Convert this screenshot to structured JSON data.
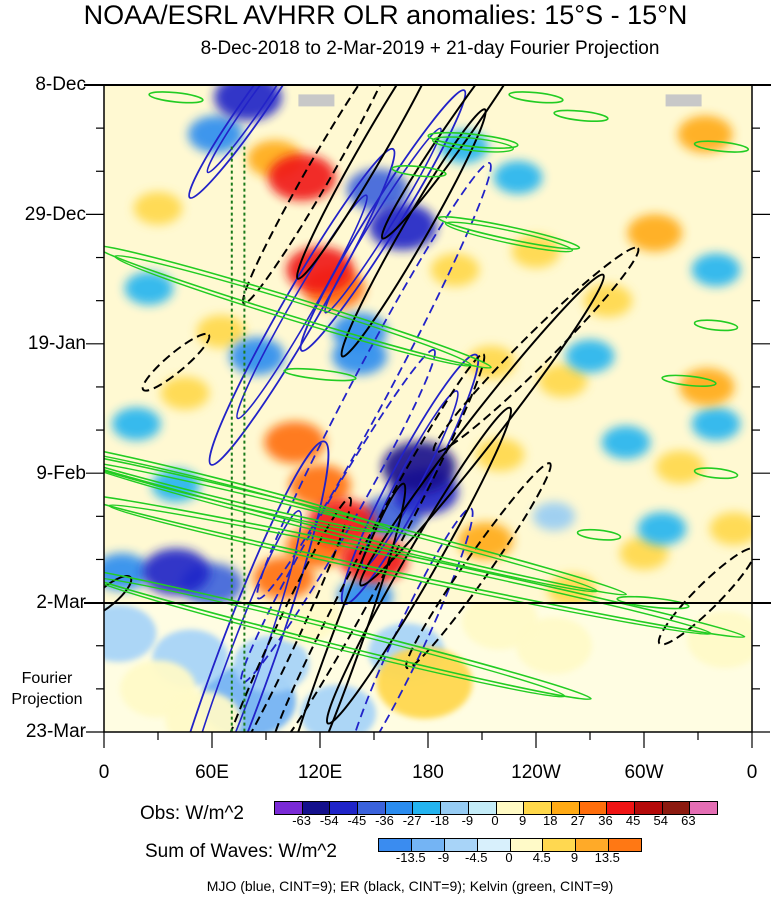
{
  "chart_data": {
    "type": "heatmap",
    "title": "NOAA/ESRL AVHRR OLR anomalies: 15°S - 15°N",
    "subtitle": "8-Dec-2018 to 2-Mar-2019 + 21-day Fourier Projection",
    "y_axis": {
      "labels": [
        "8-Dec",
        "29-Dec",
        "19-Jan",
        "9-Feb",
        "2-Mar",
        "23-Mar"
      ],
      "days": [
        0,
        21,
        42,
        63,
        84,
        105
      ],
      "range": [
        0,
        105
      ],
      "projection_start_day": 84
    },
    "x_axis": {
      "labels": [
        "0",
        "60E",
        "120E",
        "180",
        "120W",
        "60W",
        "0"
      ],
      "lon": [
        0,
        60,
        120,
        180,
        240,
        300,
        360
      ],
      "range": [
        0,
        360
      ]
    },
    "fourier_label": [
      "Fourier",
      "Projection"
    ],
    "obs_colorbar": {
      "label": "Obs: W/m^2",
      "ticks": [
        "-63",
        "-54",
        "-45",
        "-36",
        "-27",
        "-18",
        "-9",
        "0",
        "9",
        "18",
        "27",
        "36",
        "45",
        "54",
        "63"
      ],
      "colors": [
        "#7a2ad6",
        "#14108c",
        "#1f24c8",
        "#3a62dc",
        "#2a8cf0",
        "#24b4f0",
        "#96ccf4",
        "#c4ecf8",
        "#fffac4",
        "#ffd84a",
        "#ffaa14",
        "#ff6e0c",
        "#f01414",
        "#b40a0a",
        "#8c1a10",
        "#e46eb4"
      ]
    },
    "waves_colorbar": {
      "label": "Sum of Waves: W/m^2",
      "ticks": [
        "-13.5",
        "-9",
        "-4.5",
        "0",
        "4.5",
        "9",
        "13.5"
      ],
      "colors": [
        "#3a8cf0",
        "#74b4f4",
        "#a8d4f8",
        "#d8f0fc",
        "#fffac8",
        "#ffd850",
        "#ffaa28",
        "#ff7814"
      ]
    },
    "footnote": "MJO (blue, CINT=9); ER (black, CINT=9); Kelvin (green, CINT=9)",
    "projection_shading": [
      {
        "lon": 80,
        "day": 100,
        "value": -9
      },
      {
        "lon": 93,
        "day": 94,
        "value": -4.5
      },
      {
        "lon": 130,
        "day": 102,
        "value": -4.5
      },
      {
        "lon": 48,
        "day": 93,
        "value": -4.5
      },
      {
        "lon": 168,
        "day": 92,
        "value": -4.5
      },
      {
        "lon": 30,
        "day": 98,
        "value": 4.5
      },
      {
        "lon": 55,
        "day": 103,
        "value": 4.5
      },
      {
        "lon": 178,
        "day": 97,
        "value": 9
      },
      {
        "lon": 110,
        "day": 86,
        "value": 4.5
      },
      {
        "lon": 250,
        "day": 91,
        "value": 4.5
      },
      {
        "lon": 345,
        "day": 90,
        "value": 4.5
      },
      {
        "lon": 220,
        "day": 87,
        "value": 4.5
      },
      {
        "lon": 8,
        "day": 89,
        "value": -4.5
      }
    ],
    "observed_anomalies": [
      {
        "lon": 80,
        "day": 2,
        "value": -45
      },
      {
        "lon": 62,
        "day": 8,
        "value": -27
      },
      {
        "lon": 110,
        "day": 15,
        "value": 45
      },
      {
        "lon": 95,
        "day": 12,
        "value": 27
      },
      {
        "lon": 152,
        "day": 17,
        "value": -36
      },
      {
        "lon": 166,
        "day": 23,
        "value": -45
      },
      {
        "lon": 120,
        "day": 30,
        "value": 45
      },
      {
        "lon": 128,
        "day": 33,
        "value": 36
      },
      {
        "lon": 142,
        "day": 40,
        "value": -27
      },
      {
        "lon": 142,
        "day": 44,
        "value": -27
      },
      {
        "lon": 85,
        "day": 44,
        "value": -27
      },
      {
        "lon": 106,
        "day": 58,
        "value": 36
      },
      {
        "lon": 120,
        "day": 65,
        "value": 36
      },
      {
        "lon": 132,
        "day": 71,
        "value": 45
      },
      {
        "lon": 118,
        "day": 75,
        "value": 36
      },
      {
        "lon": 150,
        "day": 77,
        "value": 45
      },
      {
        "lon": 100,
        "day": 80,
        "value": 36
      },
      {
        "lon": 175,
        "day": 62,
        "value": -54
      },
      {
        "lon": 178,
        "day": 66,
        "value": -45
      },
      {
        "lon": 160,
        "day": 70,
        "value": -36
      },
      {
        "lon": 145,
        "day": 83,
        "value": -27
      },
      {
        "lon": 40,
        "day": 79,
        "value": -45
      },
      {
        "lon": 60,
        "day": 81,
        "value": -36
      },
      {
        "lon": 10,
        "day": 79,
        "value": -27
      },
      {
        "lon": 25,
        "day": 33,
        "value": -18
      },
      {
        "lon": 18,
        "day": 55,
        "value": -18
      },
      {
        "lon": 40,
        "day": 65,
        "value": -18
      },
      {
        "lon": 220,
        "day": 60,
        "value": 18
      },
      {
        "lon": 212,
        "day": 74,
        "value": 27
      },
      {
        "lon": 240,
        "day": 27,
        "value": 18
      },
      {
        "lon": 280,
        "day": 35,
        "value": 18
      },
      {
        "lon": 255,
        "day": 48,
        "value": 18
      },
      {
        "lon": 306,
        "day": 24,
        "value": 27
      },
      {
        "lon": 334,
        "day": 8,
        "value": 27
      },
      {
        "lon": 335,
        "day": 49,
        "value": 27
      },
      {
        "lon": 320,
        "day": 62,
        "value": 18
      },
      {
        "lon": 350,
        "day": 72,
        "value": 18
      },
      {
        "lon": 300,
        "day": 76,
        "value": 18
      },
      {
        "lon": 260,
        "day": 82,
        "value": 18
      },
      {
        "lon": 200,
        "day": 10,
        "value": -18
      },
      {
        "lon": 230,
        "day": 15,
        "value": -18
      },
      {
        "lon": 270,
        "day": 44,
        "value": -18
      },
      {
        "lon": 290,
        "day": 58,
        "value": -18
      },
      {
        "lon": 340,
        "day": 30,
        "value": -18
      },
      {
        "lon": 310,
        "day": 72,
        "value": -18
      },
      {
        "lon": 250,
        "day": 70,
        "value": -9
      },
      {
        "lon": 340,
        "day": 55,
        "value": -18
      },
      {
        "lon": 195,
        "day": 30,
        "value": 18
      },
      {
        "lon": 65,
        "day": 40,
        "value": 18
      },
      {
        "lon": 45,
        "day": 50,
        "value": 18
      },
      {
        "lon": 30,
        "day": 20,
        "value": 18
      },
      {
        "lon": 215,
        "day": 45,
        "value": 18
      }
    ],
    "mjo_contours": [
      {
        "lon": 82,
        "day": 4,
        "len_lon": 120,
        "len_day": 8,
        "angle": -55,
        "dashed": false
      },
      {
        "lon": 155,
        "day": 22,
        "len_lon": 160,
        "len_day": 10,
        "angle": -58,
        "dashed": false
      },
      {
        "lon": 110,
        "day": 36,
        "len_lon": 180,
        "len_day": 12,
        "angle": -60,
        "dashed": false
      },
      {
        "lon": 170,
        "day": 64,
        "len_lon": 130,
        "len_day": 12,
        "angle": -62,
        "dashed": false
      },
      {
        "lon": 75,
        "day": 96,
        "len_lon": 170,
        "len_day": 18,
        "angle": -70,
        "dashed": false
      },
      {
        "lon": 150,
        "day": 48,
        "len_lon": 230,
        "len_day": 12,
        "angle": -62,
        "dashed": true
      },
      {
        "lon": 130,
        "day": 70,
        "len_lon": 190,
        "len_day": 10,
        "angle": -60,
        "dashed": true
      },
      {
        "lon": 170,
        "day": 90,
        "len_lon": 120,
        "len_day": 10,
        "angle": -65,
        "dashed": true
      }
    ],
    "er_contours": [
      {
        "lon": 150,
        "day": 10,
        "len_lon": 150,
        "len_day": 8,
        "angle": -60,
        "dashed": false
      },
      {
        "lon": 200,
        "day": 6,
        "len_lon": 160,
        "len_day": 8,
        "angle": -55,
        "dashed": false
      },
      {
        "lon": 172,
        "day": 24,
        "len_lon": 140,
        "len_day": 8,
        "angle": -60,
        "dashed": false
      },
      {
        "lon": 210,
        "day": 56,
        "len_lon": 240,
        "len_day": 10,
        "angle": -52,
        "dashed": false
      },
      {
        "lon": 175,
        "day": 78,
        "len_lon": 180,
        "len_day": 10,
        "angle": -60,
        "dashed": false
      },
      {
        "lon": 130,
        "day": 94,
        "len_lon": 130,
        "len_day": 10,
        "angle": -70,
        "dashed": false
      },
      {
        "lon": 2,
        "day": 83,
        "len_lon": 40,
        "len_day": 6,
        "angle": -40,
        "dashed": false
      },
      {
        "lon": 120,
        "day": 14,
        "len_lon": 150,
        "len_day": 8,
        "angle": -60,
        "dashed": true
      },
      {
        "lon": 240,
        "day": 43,
        "len_lon": 200,
        "len_day": 10,
        "angle": -45,
        "dashed": true
      },
      {
        "lon": 152,
        "day": 76,
        "len_lon": 210,
        "len_day": 10,
        "angle": -62,
        "dashed": true
      },
      {
        "lon": 208,
        "day": 78,
        "len_lon": 140,
        "len_day": 8,
        "angle": -55,
        "dashed": true
      },
      {
        "lon": 100,
        "day": 90,
        "len_lon": 130,
        "len_day": 8,
        "angle": -65,
        "dashed": true
      },
      {
        "lon": 335,
        "day": 83,
        "len_lon": 90,
        "len_day": 8,
        "angle": -45,
        "dashed": true
      },
      {
        "lon": 40,
        "day": 45,
        "len_lon": 60,
        "len_day": 6,
        "angle": -40,
        "dashed": true
      }
    ],
    "kelvin_contours": [
      {
        "lon": 105,
        "day": 36,
        "len_lon": 230,
        "len_day": 3,
        "angle": 17
      },
      {
        "lon": 58,
        "day": 65,
        "len_lon": 210,
        "len_day": 3,
        "angle": 14
      },
      {
        "lon": 130,
        "day": 71,
        "len_lon": 330,
        "len_day": 3,
        "angle": 14
      },
      {
        "lon": 170,
        "day": 78,
        "len_lon": 380,
        "len_day": 3,
        "angle": 12
      },
      {
        "lon": 125,
        "day": 89,
        "len_lon": 300,
        "len_day": 3,
        "angle": 14
      },
      {
        "lon": 225,
        "day": 24,
        "len_lon": 80,
        "len_day": 2,
        "angle": 12
      },
      {
        "lon": 205,
        "day": 9,
        "len_lon": 50,
        "len_day": 2,
        "angle": 6
      },
      {
        "lon": 240,
        "day": 2,
        "len_lon": 30,
        "len_day": 1.5,
        "angle": 6
      },
      {
        "lon": 40,
        "day": 2,
        "len_lon": 30,
        "len_day": 1.5,
        "angle": 6
      },
      {
        "lon": 265,
        "day": 5,
        "len_lon": 30,
        "len_day": 1.5,
        "angle": 6
      },
      {
        "lon": 343,
        "day": 10,
        "len_lon": 30,
        "len_day": 1.5,
        "angle": 6
      },
      {
        "lon": 325,
        "day": 48,
        "len_lon": 30,
        "len_day": 1.5,
        "angle": 6
      },
      {
        "lon": 340,
        "day": 63,
        "len_lon": 24,
        "len_day": 1.5,
        "angle": 6
      },
      {
        "lon": 275,
        "day": 73,
        "len_lon": 24,
        "len_day": 1.5,
        "angle": 6
      },
      {
        "lon": 305,
        "day": 84,
        "len_lon": 40,
        "len_day": 1.5,
        "angle": 6
      },
      {
        "lon": 340,
        "day": 39,
        "len_lon": 24,
        "len_day": 1.5,
        "angle": 6
      },
      {
        "lon": 120,
        "day": 47,
        "len_lon": 40,
        "len_day": 1.5,
        "angle": 6
      },
      {
        "lon": 175,
        "day": 14,
        "len_lon": 30,
        "len_day": 1.5,
        "angle": 6
      }
    ],
    "vertical_markers": [
      {
        "lon": 71,
        "color": "#1a7a1a"
      },
      {
        "lon": 78,
        "color": "#1a7a1a"
      }
    ],
    "missing_data": [
      {
        "lon": 118,
        "day": 2.5
      },
      {
        "lon": 322,
        "day": 2.5
      }
    ]
  }
}
